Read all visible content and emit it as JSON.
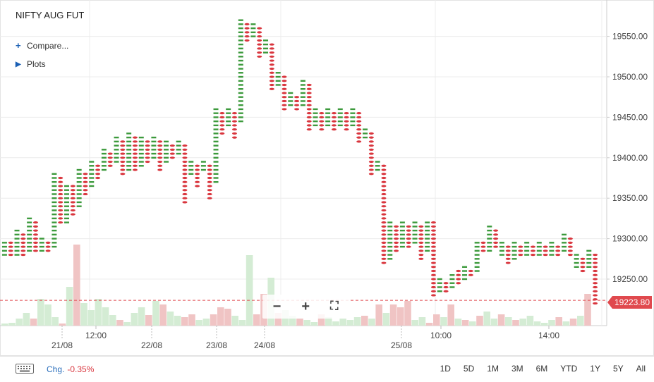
{
  "title": "NIFTY AUG FUT",
  "compare_label": "Compare...",
  "plots_label": "Plots",
  "change_label": "Chg.",
  "change_value": "-0.35%",
  "last_price": "19223.80",
  "ranges": [
    "1D",
    "5D",
    "1M",
    "3M",
    "6M",
    "YTD",
    "1Y",
    "5Y",
    "All"
  ],
  "zoom": {
    "minus": "−",
    "plus": "+",
    "fullscreen": "⛶"
  },
  "colors": {
    "up": "#3c9a3c",
    "down": "#d9363e",
    "vol_up": "#d4ecd4",
    "vol_down": "#f0c4c4",
    "grid": "#ececec",
    "price_line": "#e0494e"
  },
  "chart_data": {
    "type": "point-and-figure",
    "ylim": [
      19200,
      19575
    ],
    "y_ticks": [
      "19550.00",
      "19500.00",
      "19450.00",
      "19400.00",
      "19350.00",
      "19300.00",
      "19250.00"
    ],
    "x_tick_labels": [
      "21/08",
      "12:00",
      "22/08",
      "23/08",
      "24/08",
      "25/08",
      "10:00",
      "14:00"
    ],
    "last_value": 19223.8,
    "columns": [
      {
        "t": "X",
        "lo": 19280,
        "hi": 19295
      },
      {
        "t": "O",
        "lo": 19280,
        "hi": 19295
      },
      {
        "t": "X",
        "lo": 19280,
        "hi": 19310
      },
      {
        "t": "O",
        "lo": 19280,
        "hi": 19305
      },
      {
        "t": "X",
        "lo": 19285,
        "hi": 19325
      },
      {
        "t": "O",
        "lo": 19285,
        "hi": 19320
      },
      {
        "t": "X",
        "lo": 19285,
        "hi": 19300
      },
      {
        "t": "O",
        "lo": 19285,
        "hi": 19295
      },
      {
        "t": "X",
        "lo": 19290,
        "hi": 19380
      },
      {
        "t": "O",
        "lo": 19320,
        "hi": 19375
      },
      {
        "t": "X",
        "lo": 19320,
        "hi": 19365
      },
      {
        "t": "O",
        "lo": 19330,
        "hi": 19365
      },
      {
        "t": "X",
        "lo": 19340,
        "hi": 19385
      },
      {
        "t": "O",
        "lo": 19355,
        "hi": 19380
      },
      {
        "t": "X",
        "lo": 19365,
        "hi": 19395
      },
      {
        "t": "O",
        "lo": 19375,
        "hi": 19390
      },
      {
        "t": "X",
        "lo": 19385,
        "hi": 19410
      },
      {
        "t": "O",
        "lo": 19390,
        "hi": 19405
      },
      {
        "t": "X",
        "lo": 19395,
        "hi": 19425
      },
      {
        "t": "O",
        "lo": 19380,
        "hi": 19420
      },
      {
        "t": "X",
        "lo": 19385,
        "hi": 19430
      },
      {
        "t": "O",
        "lo": 19385,
        "hi": 19425
      },
      {
        "t": "X",
        "lo": 19390,
        "hi": 19425
      },
      {
        "t": "O",
        "lo": 19395,
        "hi": 19420
      },
      {
        "t": "X",
        "lo": 19400,
        "hi": 19425
      },
      {
        "t": "O",
        "lo": 19385,
        "hi": 19420
      },
      {
        "t": "X",
        "lo": 19395,
        "hi": 19420
      },
      {
        "t": "O",
        "lo": 19400,
        "hi": 19415
      },
      {
        "t": "X",
        "lo": 19405,
        "hi": 19420
      },
      {
        "t": "O",
        "lo": 19345,
        "hi": 19415
      },
      {
        "t": "X",
        "lo": 19380,
        "hi": 19395
      },
      {
        "t": "O",
        "lo": 19365,
        "hi": 19390
      },
      {
        "t": "X",
        "lo": 19385,
        "hi": 19395
      },
      {
        "t": "O",
        "lo": 19350,
        "hi": 19390
      },
      {
        "t": "X",
        "lo": 19370,
        "hi": 19460
      },
      {
        "t": "O",
        "lo": 19430,
        "hi": 19455
      },
      {
        "t": "X",
        "lo": 19440,
        "hi": 19460
      },
      {
        "t": "O",
        "lo": 19425,
        "hi": 19455
      },
      {
        "t": "X",
        "lo": 19445,
        "hi": 19570
      },
      {
        "t": "O",
        "lo": 19545,
        "hi": 19565
      },
      {
        "t": "X",
        "lo": 19550,
        "hi": 19565
      },
      {
        "t": "O",
        "lo": 19525,
        "hi": 19560
      },
      {
        "t": "X",
        "lo": 19530,
        "hi": 19545
      },
      {
        "t": "O",
        "lo": 19485,
        "hi": 19540
      },
      {
        "t": "X",
        "lo": 19490,
        "hi": 19505
      },
      {
        "t": "O",
        "lo": 19460,
        "hi": 19500
      },
      {
        "t": "X",
        "lo": 19465,
        "hi": 19480
      },
      {
        "t": "O",
        "lo": 19460,
        "hi": 19475
      },
      {
        "t": "X",
        "lo": 19465,
        "hi": 19495
      },
      {
        "t": "O",
        "lo": 19435,
        "hi": 19490
      },
      {
        "t": "X",
        "lo": 19440,
        "hi": 19460
      },
      {
        "t": "O",
        "lo": 19435,
        "hi": 19455
      },
      {
        "t": "X",
        "lo": 19440,
        "hi": 19460
      },
      {
        "t": "O",
        "lo": 19435,
        "hi": 19455
      },
      {
        "t": "X",
        "lo": 19440,
        "hi": 19460
      },
      {
        "t": "O",
        "lo": 19435,
        "hi": 19455
      },
      {
        "t": "X",
        "lo": 19440,
        "hi": 19460
      },
      {
        "t": "O",
        "lo": 19420,
        "hi": 19455
      },
      {
        "t": "X",
        "lo": 19425,
        "hi": 19435
      },
      {
        "t": "O",
        "lo": 19380,
        "hi": 19430
      },
      {
        "t": "X",
        "lo": 19385,
        "hi": 19395
      },
      {
        "t": "O",
        "lo": 19270,
        "hi": 19390
      },
      {
        "t": "X",
        "lo": 19275,
        "hi": 19320
      },
      {
        "t": "O",
        "lo": 19285,
        "hi": 19315
      },
      {
        "t": "X",
        "lo": 19290,
        "hi": 19320
      },
      {
        "t": "O",
        "lo": 19290,
        "hi": 19315
      },
      {
        "t": "X",
        "lo": 19295,
        "hi": 19320
      },
      {
        "t": "O",
        "lo": 19275,
        "hi": 19315
      },
      {
        "t": "X",
        "lo": 19285,
        "hi": 19320
      },
      {
        "t": "O",
        "lo": 19230,
        "hi": 19320
      },
      {
        "t": "X",
        "lo": 19235,
        "hi": 19250
      },
      {
        "t": "O",
        "lo": 19235,
        "hi": 19245
      },
      {
        "t": "X",
        "lo": 19240,
        "hi": 19255
      },
      {
        "t": "O",
        "lo": 19245,
        "hi": 19260
      },
      {
        "t": "X",
        "lo": 19250,
        "hi": 19265
      },
      {
        "t": "O",
        "lo": 19255,
        "hi": 19260
      },
      {
        "t": "X",
        "lo": 19260,
        "hi": 19295
      },
      {
        "t": "O",
        "lo": 19285,
        "hi": 19295
      },
      {
        "t": "X",
        "lo": 19285,
        "hi": 19315
      },
      {
        "t": "O",
        "lo": 19290,
        "hi": 19310
      },
      {
        "t": "X",
        "lo": 19280,
        "hi": 19295
      },
      {
        "t": "O",
        "lo": 19270,
        "hi": 19290
      },
      {
        "t": "X",
        "lo": 19275,
        "hi": 19295
      },
      {
        "t": "O",
        "lo": 19280,
        "hi": 19290
      },
      {
        "t": "X",
        "lo": 19280,
        "hi": 19295
      },
      {
        "t": "O",
        "lo": 19280,
        "hi": 19290
      },
      {
        "t": "X",
        "lo": 19280,
        "hi": 19295
      },
      {
        "t": "O",
        "lo": 19280,
        "hi": 19290
      },
      {
        "t": "X",
        "lo": 19280,
        "hi": 19295
      },
      {
        "t": "O",
        "lo": 19280,
        "hi": 19290
      },
      {
        "t": "X",
        "lo": 19285,
        "hi": 19305
      },
      {
        "t": "O",
        "lo": 19280,
        "hi": 19300
      },
      {
        "t": "X",
        "lo": 19265,
        "hi": 19280
      },
      {
        "t": "O",
        "lo": 19260,
        "hi": 19275
      },
      {
        "t": "X",
        "lo": 19265,
        "hi": 19285
      },
      {
        "t": "O",
        "lo": 19220,
        "hi": 19280
      }
    ],
    "volume": [
      {
        "v": 3,
        "d": "up"
      },
      {
        "v": 4,
        "d": "up"
      },
      {
        "v": 10,
        "d": "up"
      },
      {
        "v": 18,
        "d": "up"
      },
      {
        "v": 10,
        "d": "down"
      },
      {
        "v": 38,
        "d": "up"
      },
      {
        "v": 30,
        "d": "up"
      },
      {
        "v": 12,
        "d": "up"
      },
      {
        "v": 3,
        "d": "down"
      },
      {
        "v": 55,
        "d": "up"
      },
      {
        "v": 115,
        "d": "down"
      },
      {
        "v": 32,
        "d": "up"
      },
      {
        "v": 22,
        "d": "up"
      },
      {
        "v": 38,
        "d": "up"
      },
      {
        "v": 26,
        "d": "up"
      },
      {
        "v": 15,
        "d": "up"
      },
      {
        "v": 8,
        "d": "down"
      },
      {
        "v": 5,
        "d": "up"
      },
      {
        "v": 18,
        "d": "up"
      },
      {
        "v": 26,
        "d": "up"
      },
      {
        "v": 15,
        "d": "down"
      },
      {
        "v": 35,
        "d": "up"
      },
      {
        "v": 30,
        "d": "down"
      },
      {
        "v": 20,
        "d": "up"
      },
      {
        "v": 14,
        "d": "up"
      },
      {
        "v": 12,
        "d": "down"
      },
      {
        "v": 16,
        "d": "down"
      },
      {
        "v": 8,
        "d": "up"
      },
      {
        "v": 10,
        "d": "up"
      },
      {
        "v": 16,
        "d": "down"
      },
      {
        "v": 26,
        "d": "down"
      },
      {
        "v": 24,
        "d": "down"
      },
      {
        "v": 14,
        "d": "up"
      },
      {
        "v": 8,
        "d": "up"
      },
      {
        "v": 100,
        "d": "up"
      },
      {
        "v": 16,
        "d": "down"
      },
      {
        "v": 45,
        "d": "down"
      },
      {
        "v": 68,
        "d": "up"
      },
      {
        "v": 18,
        "d": "down"
      },
      {
        "v": 22,
        "d": "up"
      },
      {
        "v": 14,
        "d": "up"
      },
      {
        "v": 10,
        "d": "down"
      },
      {
        "v": 8,
        "d": "up"
      },
      {
        "v": 5,
        "d": "up"
      },
      {
        "v": 16,
        "d": "down"
      },
      {
        "v": 12,
        "d": "up"
      },
      {
        "v": 6,
        "d": "up"
      },
      {
        "v": 10,
        "d": "up"
      },
      {
        "v": 8,
        "d": "up"
      },
      {
        "v": 12,
        "d": "up"
      },
      {
        "v": 14,
        "d": "down"
      },
      {
        "v": 10,
        "d": "up"
      },
      {
        "v": 30,
        "d": "down"
      },
      {
        "v": 18,
        "d": "up"
      },
      {
        "v": 30,
        "d": "down"
      },
      {
        "v": 26,
        "d": "down"
      },
      {
        "v": 35,
        "d": "down"
      },
      {
        "v": 8,
        "d": "up"
      },
      {
        "v": 12,
        "d": "up"
      },
      {
        "v": 4,
        "d": "down"
      },
      {
        "v": 16,
        "d": "down"
      },
      {
        "v": 12,
        "d": "up"
      },
      {
        "v": 30,
        "d": "down"
      },
      {
        "v": 10,
        "d": "up"
      },
      {
        "v": 8,
        "d": "down"
      },
      {
        "v": 6,
        "d": "up"
      },
      {
        "v": 14,
        "d": "down"
      },
      {
        "v": 20,
        "d": "up"
      },
      {
        "v": 10,
        "d": "up"
      },
      {
        "v": 16,
        "d": "down"
      },
      {
        "v": 12,
        "d": "up"
      },
      {
        "v": 8,
        "d": "down"
      },
      {
        "v": 10,
        "d": "up"
      },
      {
        "v": 14,
        "d": "up"
      },
      {
        "v": 6,
        "d": "up"
      },
      {
        "v": 4,
        "d": "up"
      },
      {
        "v": 8,
        "d": "up"
      },
      {
        "v": 12,
        "d": "down"
      },
      {
        "v": 6,
        "d": "up"
      },
      {
        "v": 10,
        "d": "down"
      },
      {
        "v": 14,
        "d": "up"
      },
      {
        "v": 45,
        "d": "down"
      }
    ]
  }
}
